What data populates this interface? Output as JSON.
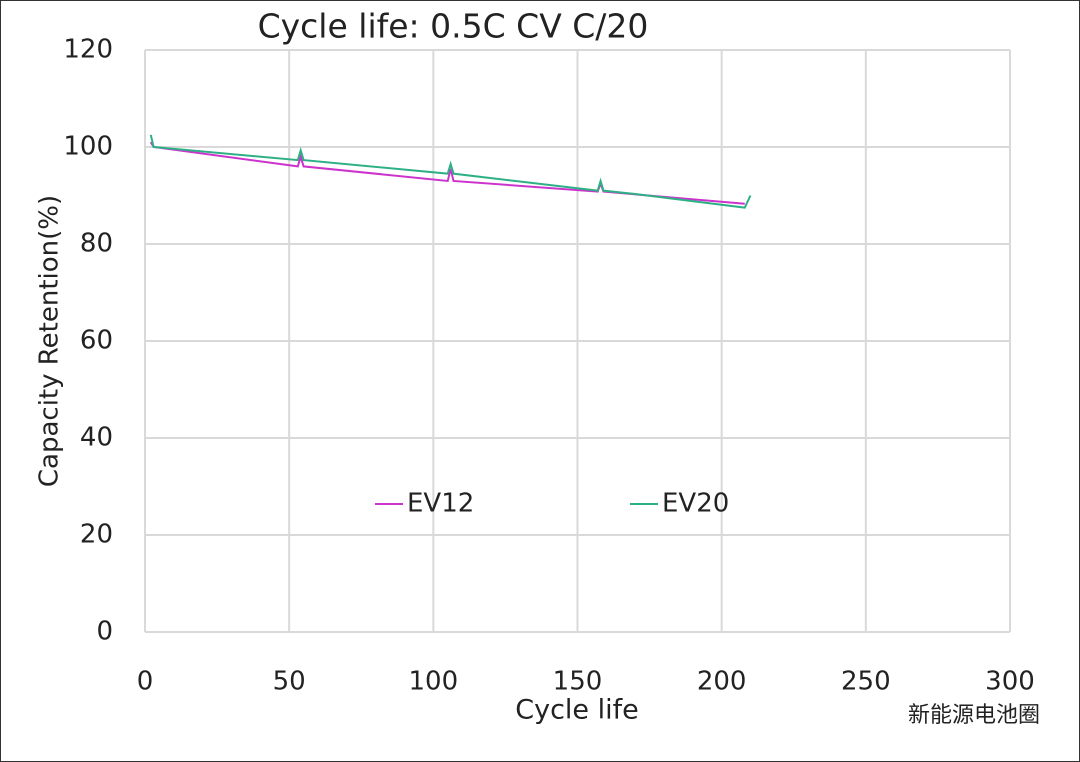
{
  "chart_data": {
    "type": "line",
    "title": "Cycle life: 0.5C CV C/20",
    "x_label": "Cycle life",
    "y_label": "Capacity Retention(%)",
    "xlim": [
      0,
      300
    ],
    "xticks": [
      0,
      50,
      100,
      150,
      200,
      250,
      300
    ],
    "ylim": [
      0,
      120
    ],
    "yticks": [
      0,
      20,
      40,
      60,
      80,
      100,
      120
    ],
    "grid": true,
    "series": [
      {
        "name": "EV12",
        "color": "#cc33cc",
        "x": [
          2,
          3,
          53,
          54,
          55,
          105,
          106,
          107,
          157,
          158,
          159,
          208
        ],
        "values": [
          101,
          100,
          96,
          98,
          96,
          93,
          95.5,
          93,
          90.8,
          92.5,
          90.8,
          88.3
        ]
      },
      {
        "name": "EV20",
        "color": "#2eb086",
        "x": [
          2,
          3,
          53,
          54,
          55,
          105,
          106,
          107,
          157,
          158,
          159,
          170,
          208,
          210
        ],
        "values": [
          102.5,
          100,
          97.3,
          99.3,
          97.3,
          94.5,
          96.5,
          94.5,
          91,
          93,
          91,
          90.3,
          87.5,
          90
        ]
      }
    ]
  },
  "watermark": "新能源电池圈"
}
